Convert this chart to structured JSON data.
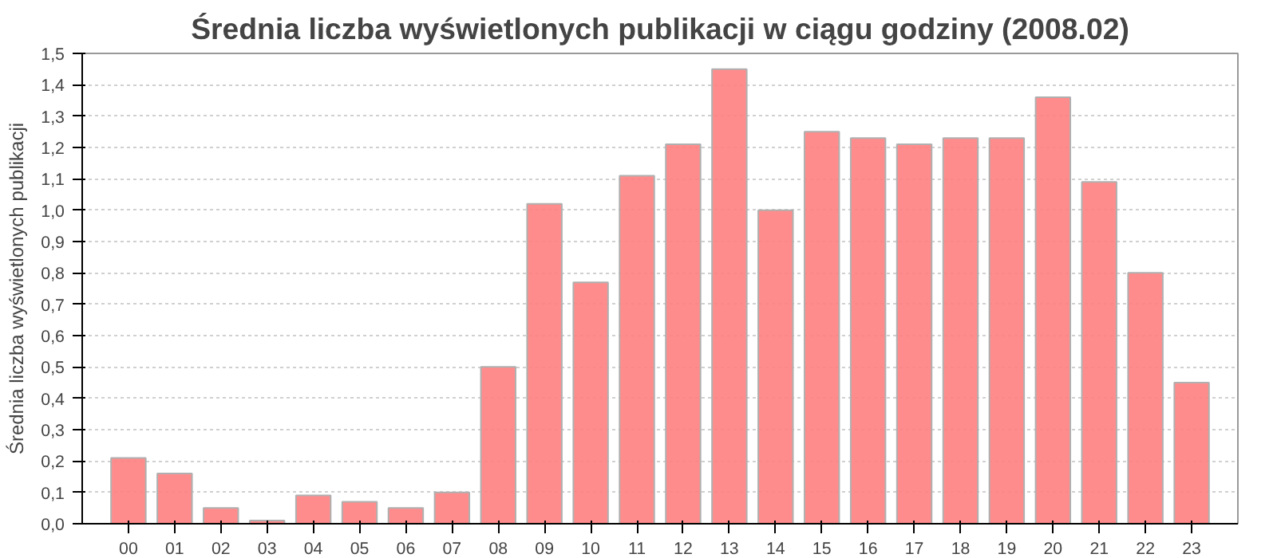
{
  "chart_data": {
    "type": "bar",
    "title": "Średnia liczba wyświetlonych publikacji w ciągu godziny (2008.02)",
    "ylabel": "Średnia liczba wyświetlonych publikacji",
    "categories": [
      "00",
      "01",
      "02",
      "03",
      "04",
      "05",
      "06",
      "07",
      "08",
      "09",
      "10",
      "11",
      "12",
      "13",
      "14",
      "15",
      "16",
      "17",
      "18",
      "19",
      "20",
      "21",
      "22",
      "23"
    ],
    "values": [
      0.21,
      0.16,
      0.05,
      0.01,
      0.09,
      0.07,
      0.05,
      0.1,
      0.5,
      1.02,
      0.77,
      1.11,
      1.21,
      1.45,
      1.0,
      1.25,
      1.23,
      1.21,
      1.23,
      1.23,
      1.36,
      1.09,
      0.8,
      0.45
    ],
    "color": "#ff8080",
    "ylim": [
      0,
      1.5
    ],
    "yticks": [
      {
        "value": 0,
        "label": "0,0"
      },
      {
        "value": 0.1,
        "label": "0,1"
      },
      {
        "value": 0.2,
        "label": "0,2"
      },
      {
        "value": 0.3,
        "label": "0,3"
      },
      {
        "value": 0.4,
        "label": "0,4"
      },
      {
        "value": 0.5,
        "label": "0,5"
      },
      {
        "value": 0.6,
        "label": "0,6"
      },
      {
        "value": 0.7,
        "label": "0,7"
      },
      {
        "value": 0.8,
        "label": "0,8"
      },
      {
        "value": 0.9,
        "label": "0,9"
      },
      {
        "value": 1.0,
        "label": "1,0"
      },
      {
        "value": 1.1,
        "label": "1,1"
      },
      {
        "value": 1.2,
        "label": "1,2"
      },
      {
        "value": 1.3,
        "label": "1,3"
      },
      {
        "value": 1.4,
        "label": "1,4"
      },
      {
        "value": 1.5,
        "label": "1,5"
      }
    ],
    "grid": "y"
  }
}
